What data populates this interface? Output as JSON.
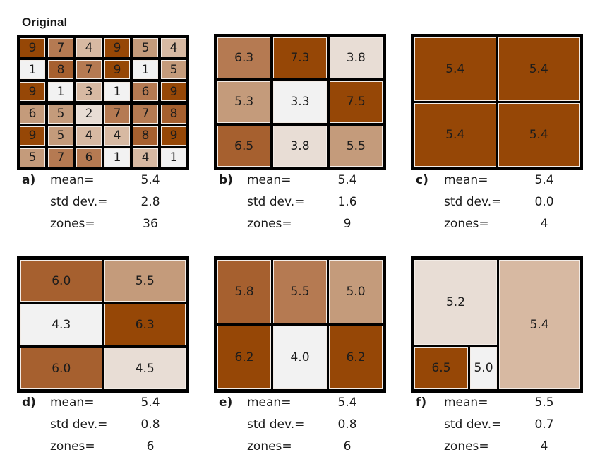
{
  "title": "Original",
  "colors": {
    "c1": "#f2f2f2",
    "c2": "#e8ddd5",
    "c3": "#d7b9a2",
    "c4": "#c49b7b",
    "c5": "#b57a52",
    "c6": "#a6602f",
    "c7": "#964706",
    "border": "#000000"
  },
  "labels": {
    "mean": "mean=",
    "std": "std dev.=",
    "zones": "zones="
  },
  "panels": [
    {
      "id": "a",
      "letter": "a)",
      "mean": "5.4",
      "std": "2.8",
      "zones": "36",
      "cells": [
        {
          "v": "9",
          "c": "c7"
        },
        {
          "v": "7",
          "c": "c5"
        },
        {
          "v": "4",
          "c": "c3"
        },
        {
          "v": "9",
          "c": "c7"
        },
        {
          "v": "5",
          "c": "c4"
        },
        {
          "v": "4",
          "c": "c3"
        },
        {
          "v": "1",
          "c": "c1"
        },
        {
          "v": "8",
          "c": "c6"
        },
        {
          "v": "7",
          "c": "c5"
        },
        {
          "v": "9",
          "c": "c7"
        },
        {
          "v": "1",
          "c": "c1"
        },
        {
          "v": "5",
          "c": "c4"
        },
        {
          "v": "9",
          "c": "c7"
        },
        {
          "v": "1",
          "c": "c1"
        },
        {
          "v": "3",
          "c": "c3"
        },
        {
          "v": "1",
          "c": "c1"
        },
        {
          "v": "6",
          "c": "c5"
        },
        {
          "v": "9",
          "c": "c7"
        },
        {
          "v": "6",
          "c": "c4"
        },
        {
          "v": "5",
          "c": "c4"
        },
        {
          "v": "2",
          "c": "c2"
        },
        {
          "v": "7",
          "c": "c5"
        },
        {
          "v": "7",
          "c": "c5"
        },
        {
          "v": "8",
          "c": "c6"
        },
        {
          "v": "9",
          "c": "c7"
        },
        {
          "v": "5",
          "c": "c4"
        },
        {
          "v": "4",
          "c": "c3"
        },
        {
          "v": "4",
          "c": "c3"
        },
        {
          "v": "8",
          "c": "c6"
        },
        {
          "v": "9",
          "c": "c7"
        },
        {
          "v": "5",
          "c": "c4"
        },
        {
          "v": "7",
          "c": "c5"
        },
        {
          "v": "6",
          "c": "c5"
        },
        {
          "v": "1",
          "c": "c1"
        },
        {
          "v": "4",
          "c": "c3"
        },
        {
          "v": "1",
          "c": "c1"
        }
      ]
    },
    {
      "id": "b",
      "letter": "b)",
      "mean": "5.4",
      "std": "1.6",
      "zones": "9",
      "cells": [
        {
          "v": "6.3",
          "c": "c5"
        },
        {
          "v": "7.3",
          "c": "c7"
        },
        {
          "v": "3.8",
          "c": "c2"
        },
        {
          "v": "5.3",
          "c": "c4"
        },
        {
          "v": "3.3",
          "c": "c1"
        },
        {
          "v": "7.5",
          "c": "c7"
        },
        {
          "v": "6.5",
          "c": "c6"
        },
        {
          "v": "3.8",
          "c": "c2"
        },
        {
          "v": "5.5",
          "c": "c4"
        }
      ]
    },
    {
      "id": "c",
      "letter": "c)",
      "mean": "5.4",
      "std": "0.0",
      "zones": "4",
      "cells": [
        {
          "v": "5.4",
          "c": "c7"
        },
        {
          "v": "5.4",
          "c": "c7"
        },
        {
          "v": "5.4",
          "c": "c7"
        },
        {
          "v": "5.4",
          "c": "c7"
        }
      ]
    },
    {
      "id": "d",
      "letter": "d)",
      "mean": "5.4",
      "std": "0.8",
      "zones": "6",
      "cells": [
        {
          "v": "6.0",
          "c": "c6"
        },
        {
          "v": "5.5",
          "c": "c4"
        },
        {
          "v": "4.3",
          "c": "c1"
        },
        {
          "v": "6.3",
          "c": "c7"
        },
        {
          "v": "6.0",
          "c": "c6"
        },
        {
          "v": "4.5",
          "c": "c2"
        }
      ]
    },
    {
      "id": "e",
      "letter": "e)",
      "mean": "5.4",
      "std": "0.8",
      "zones": "6",
      "cells": [
        {
          "v": "5.8",
          "c": "c6"
        },
        {
          "v": "5.5",
          "c": "c5"
        },
        {
          "v": "5.0",
          "c": "c4"
        },
        {
          "v": "6.2",
          "c": "c7"
        },
        {
          "v": "4.0",
          "c": "c1"
        },
        {
          "v": "6.2",
          "c": "c7"
        }
      ]
    },
    {
      "id": "f",
      "letter": "f)",
      "mean": "5.5",
      "std": "0.7",
      "zones": "4",
      "cells": [
        {
          "v": "5.2",
          "c": "c2"
        },
        {
          "v": "5.4",
          "c": "c3"
        },
        {
          "v": "6.5",
          "c": "c7"
        },
        {
          "v": "5.0",
          "c": "c1"
        }
      ]
    }
  ]
}
